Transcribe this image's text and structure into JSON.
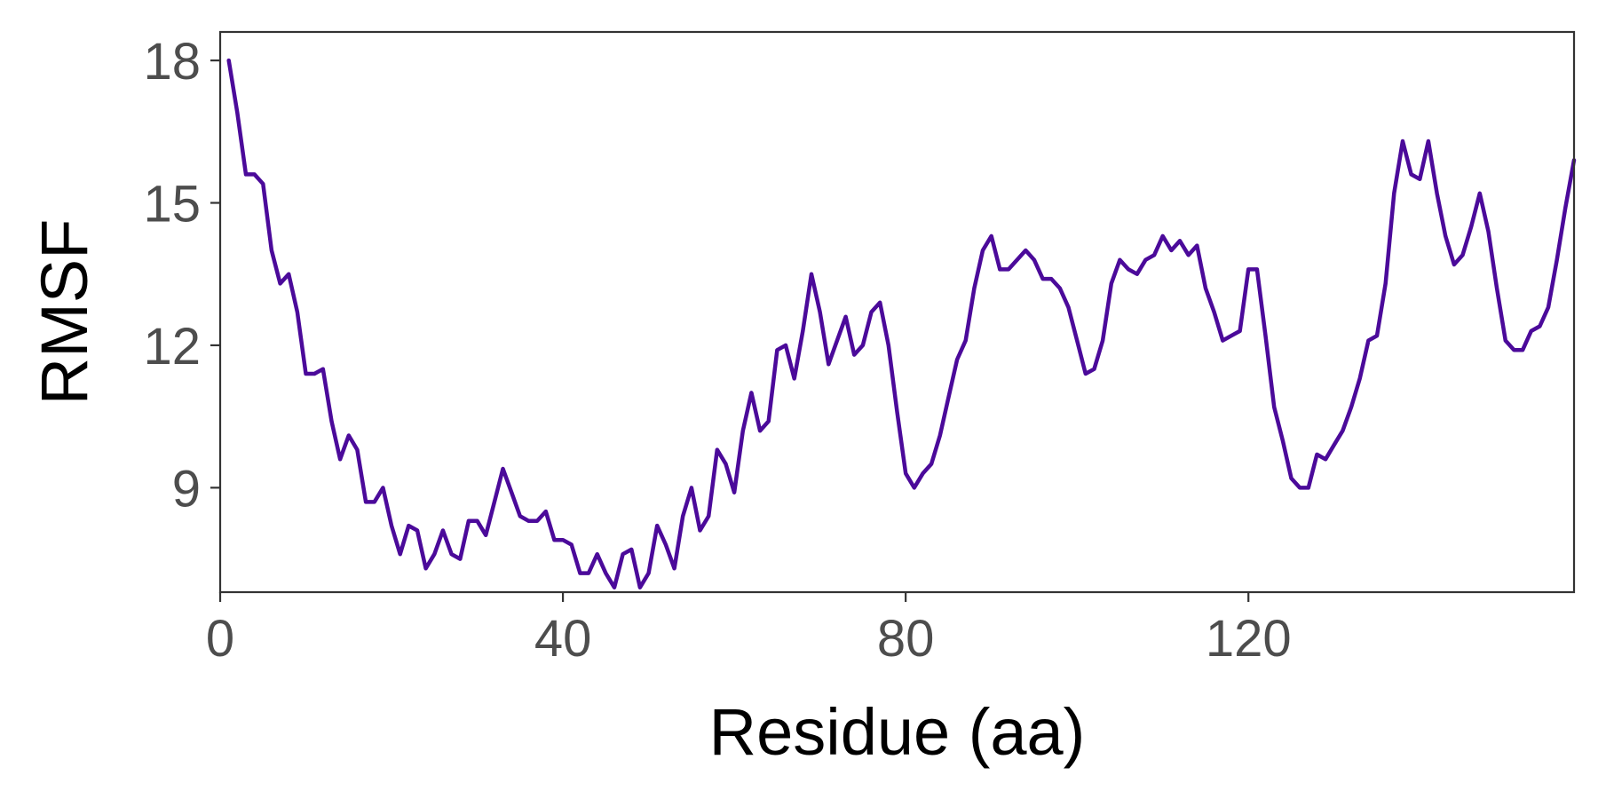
{
  "chart_data": {
    "type": "line",
    "xlabel": "Residue (aa)",
    "ylabel": "RMSF",
    "xlim": [
      0,
      158
    ],
    "ylim": [
      6.8,
      18.6
    ],
    "x_ticks": [
      0,
      40,
      80,
      120
    ],
    "y_ticks": [
      9,
      12,
      15,
      18
    ],
    "x_tick_labels": [
      "0",
      "40",
      "80",
      "120"
    ],
    "y_tick_labels": [
      "9",
      "12",
      "15",
      "18"
    ],
    "grid": false,
    "legend": "none",
    "line_color": "#4B0A9A",
    "series": [
      {
        "x": [
          1,
          2,
          3,
          4,
          5,
          6,
          7,
          8,
          9,
          10,
          11,
          12,
          13,
          14,
          15,
          16,
          17,
          18,
          19,
          20,
          21,
          22,
          23,
          24,
          25,
          26,
          27,
          28,
          29,
          30,
          31,
          32,
          33,
          34,
          35,
          36,
          37,
          38,
          39,
          40,
          41,
          42,
          43,
          44,
          45,
          46,
          47,
          48,
          49,
          50,
          51,
          52,
          53,
          54,
          55,
          56,
          57,
          58,
          59,
          60,
          61,
          62,
          63,
          64,
          65,
          66,
          67,
          68,
          69,
          70,
          71,
          72,
          73,
          74,
          75,
          76,
          77,
          78,
          79,
          80,
          81,
          82,
          83,
          84,
          85,
          86,
          87,
          88,
          89,
          90,
          91,
          92,
          93,
          94,
          95,
          96,
          97,
          98,
          99,
          100,
          101,
          102,
          103,
          104,
          105,
          106,
          107,
          108,
          109,
          110,
          111,
          112,
          113,
          114,
          115,
          116,
          117,
          118,
          119,
          120,
          121,
          122,
          123,
          124,
          125,
          126,
          127,
          128,
          129,
          130,
          131,
          132,
          133,
          134,
          135,
          136,
          137,
          138,
          139,
          140,
          141,
          142,
          143,
          144,
          145,
          146,
          147,
          148,
          149,
          150,
          151,
          152,
          153,
          154,
          155,
          156,
          157,
          158
        ],
        "values": [
          18.0,
          16.9,
          15.6,
          15.6,
          15.4,
          14.0,
          13.3,
          13.5,
          12.7,
          11.4,
          11.4,
          11.5,
          10.4,
          9.6,
          10.1,
          9.8,
          8.7,
          8.7,
          9.0,
          8.2,
          7.6,
          8.2,
          8.1,
          7.3,
          7.6,
          8.1,
          7.6,
          7.5,
          8.3,
          8.3,
          8.0,
          8.7,
          9.4,
          8.9,
          8.4,
          8.3,
          8.3,
          8.5,
          7.9,
          7.9,
          7.8,
          7.2,
          7.2,
          7.6,
          7.2,
          6.9,
          7.6,
          7.7,
          6.9,
          7.2,
          8.2,
          7.8,
          7.3,
          8.4,
          9.0,
          8.1,
          8.4,
          9.8,
          9.5,
          8.9,
          10.2,
          11.0,
          10.2,
          10.4,
          11.9,
          12.0,
          11.3,
          12.3,
          13.5,
          12.7,
          11.6,
          12.1,
          12.6,
          11.8,
          12.0,
          12.7,
          12.9,
          12.0,
          10.6,
          9.3,
          9.0,
          9.3,
          9.5,
          10.1,
          10.9,
          11.7,
          12.1,
          13.2,
          14.0,
          14.3,
          13.6,
          13.6,
          13.8,
          14.0,
          13.8,
          13.4,
          13.4,
          13.2,
          12.8,
          12.1,
          11.4,
          11.5,
          12.1,
          13.3,
          13.8,
          13.6,
          13.5,
          13.8,
          13.9,
          14.3,
          14.0,
          14.2,
          13.9,
          14.1,
          13.2,
          12.7,
          12.1,
          12.2,
          12.3,
          13.6,
          13.6,
          12.2,
          10.7,
          10.0,
          9.2,
          9.0,
          9.0,
          9.7,
          9.6,
          9.9,
          10.2,
          10.7,
          11.3,
          12.1,
          12.2,
          13.3,
          15.2,
          16.3,
          15.6,
          15.5,
          16.3,
          15.2,
          14.3,
          13.7,
          13.9,
          14.5,
          15.2,
          14.4,
          13.2,
          12.1,
          11.9,
          11.9,
          12.3,
          12.4,
          12.8,
          13.8,
          14.9,
          15.9
        ]
      }
    ]
  }
}
